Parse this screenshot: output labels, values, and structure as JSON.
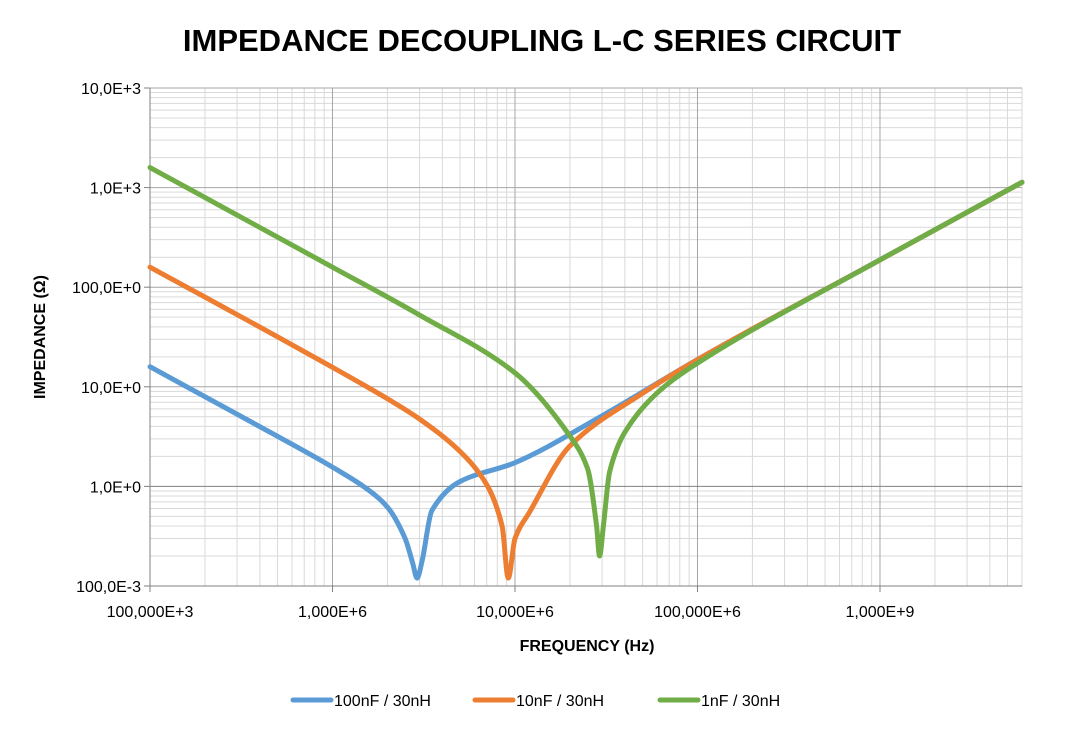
{
  "chart_data": {
    "type": "line",
    "title": "IMPEDANCE DECOUPLING L-C SERIES CIRCUIT",
    "xlabel": "FREQUENCY (Hz)",
    "ylabel": "IMPEDANCE (Ω)",
    "x_scale": "log",
    "y_scale": "log",
    "xlim": [
      100000,
      6000000000
    ],
    "ylim": [
      0.1,
      10000
    ],
    "x_ticks": [
      {
        "value": 100000,
        "label": "100,000E+3"
      },
      {
        "value": 1000000,
        "label": "1,000E+6"
      },
      {
        "value": 10000000,
        "label": "10,000E+6"
      },
      {
        "value": 100000000,
        "label": "100,000E+6"
      },
      {
        "value": 1000000000,
        "label": "1,000E+9"
      }
    ],
    "y_ticks": [
      {
        "value": 0.1,
        "label": "100,0E-3"
      },
      {
        "value": 1,
        "label": "1,0E+0"
      },
      {
        "value": 10,
        "label": "10,0E+0"
      },
      {
        "value": 100,
        "label": "100,0E+0"
      },
      {
        "value": 1000,
        "label": "1,0E+3"
      },
      {
        "value": 10000,
        "label": "10,0E+3"
      }
    ],
    "grid": true,
    "legend_position": "bottom",
    "series": [
      {
        "name": "100nF / 30nH",
        "color": "#5b9bd5",
        "x": [
          100000,
          200000,
          500000,
          1000000,
          1500000,
          2000000,
          2500000,
          2750000,
          2906000,
          3100000,
          3500000,
          5000000,
          10000000,
          30000000,
          100000000,
          1000000000,
          6000000000
        ],
        "y": [
          15.9,
          7.95,
          3.18,
          1.56,
          0.98,
          0.62,
          0.3,
          0.17,
          0.12,
          0.18,
          0.57,
          1.12,
          1.73,
          5.12,
          18.8,
          188.5,
          1131
        ]
      },
      {
        "name": "10nF / 30nH",
        "color": "#ed7d31",
        "x": [
          100000,
          200000,
          500000,
          1000000,
          2000000,
          3000000,
          5000000,
          7000000,
          8500000,
          9188000,
          10000000,
          12000000,
          20000000,
          50000000,
          100000000,
          1000000000,
          6000000000
        ],
        "y": [
          159,
          79.6,
          31.8,
          15.7,
          7.58,
          4.74,
          2.24,
          1.04,
          0.4,
          0.12,
          0.3,
          0.55,
          2.55,
          8.6,
          18.7,
          188,
          1131
        ]
      },
      {
        "name": "1nF / 30nH",
        "color": "#70ad47",
        "x": [
          100000,
          300000,
          1000000,
          3000000,
          10000000,
          20000000,
          25000000,
          28000000,
          29060000,
          30500000,
          33000000,
          40000000,
          60000000,
          100000000,
          1000000000,
          6000000000
        ],
        "y": [
          1591,
          530,
          159,
          52.5,
          13.8,
          3.2,
          1.5,
          0.4,
          0.2,
          0.4,
          1.4,
          3.5,
          8.65,
          17.3,
          188,
          1131
        ]
      }
    ]
  }
}
